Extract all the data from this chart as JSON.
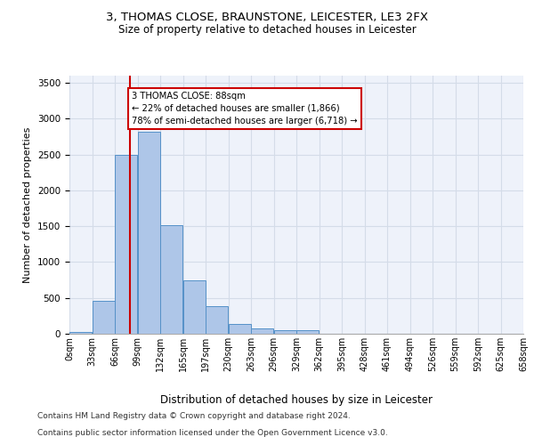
{
  "title1": "3, THOMAS CLOSE, BRAUNSTONE, LEICESTER, LE3 2FX",
  "title2": "Size of property relative to detached houses in Leicester",
  "xlabel": "Distribution of detached houses by size in Leicester",
  "ylabel": "Number of detached properties",
  "bin_labels": [
    "0sqm",
    "33sqm",
    "66sqm",
    "99sqm",
    "132sqm",
    "165sqm",
    "197sqm",
    "230sqm",
    "263sqm",
    "296sqm",
    "329sqm",
    "362sqm",
    "395sqm",
    "428sqm",
    "461sqm",
    "494sqm",
    "526sqm",
    "559sqm",
    "592sqm",
    "625sqm",
    "658sqm"
  ],
  "bar_values": [
    25,
    460,
    2500,
    2820,
    1510,
    750,
    390,
    140,
    75,
    55,
    55,
    0,
    0,
    0,
    0,
    0,
    0,
    0,
    0,
    0
  ],
  "bar_color": "#aec6e8",
  "bar_edge_color": "#5591c8",
  "grid_color": "#d4dce8",
  "bg_color": "#eef2fa",
  "vline_x": 88,
  "annotation_text": "3 THOMAS CLOSE: 88sqm\n← 22% of detached houses are smaller (1,866)\n78% of semi-detached houses are larger (6,718) →",
  "annotation_box_color": "#ffffff",
  "annotation_box_edge": "#cc0000",
  "vline_color": "#cc0000",
  "footer1": "Contains HM Land Registry data © Crown copyright and database right 2024.",
  "footer2": "Contains public sector information licensed under the Open Government Licence v3.0.",
  "ylim": [
    0,
    3600
  ],
  "bin_width": 33,
  "title1_fontsize": 9.5,
  "title2_fontsize": 8.5,
  "ylabel_fontsize": 8,
  "xlabel_fontsize": 8.5,
  "tick_fontsize": 7,
  "footer_fontsize": 6.5
}
